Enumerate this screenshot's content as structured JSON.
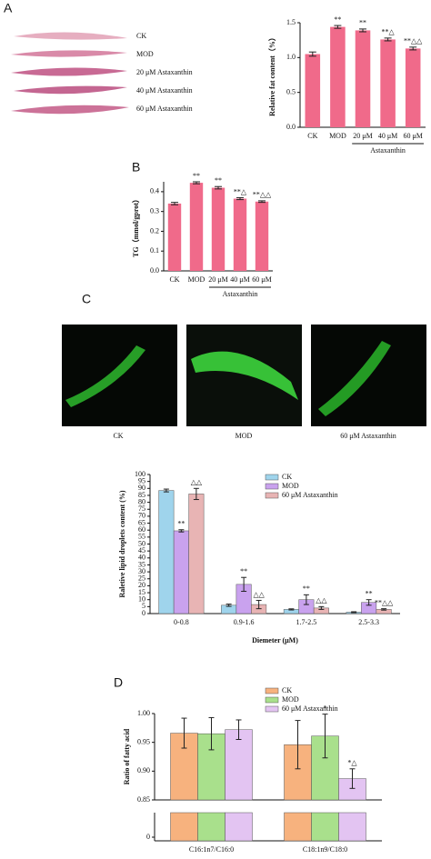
{
  "figure": {
    "panels": [
      "A",
      "B",
      "C",
      "D"
    ],
    "worm_labels": [
      "CK",
      "MOD",
      "20 μM Astaxanthin",
      "40 μM Astaxanthin",
      "60 μM Astaxanthin"
    ],
    "fluor_labels": [
      "CK",
      "MOD",
      "60 μM Astaxanthin"
    ]
  },
  "chart_data": [
    {
      "type": "bar",
      "ylabel": "Relative fat content（%）",
      "categories": [
        "CK",
        "MOD",
        "20 μM",
        "40 μM",
        "60 μM"
      ],
      "group_label": "Astaxanthin",
      "values": [
        1.05,
        1.44,
        1.39,
        1.26,
        1.13
      ],
      "errors": [
        0.03,
        0.02,
        0.02,
        0.02,
        0.02
      ],
      "annotations": [
        null,
        "**",
        "**",
        "**△",
        "**△△"
      ],
      "color": "#f06a8a",
      "ylim": [
        0,
        1.5
      ],
      "yticks": [
        {
          "value": 0,
          "label": "0.0"
        },
        0.5,
        {
          "value": 1,
          "label": "1.0"
        },
        1.5
      ]
    },
    {
      "type": "bar",
      "ylabel": "TG（mmol/gprot）",
      "categories": [
        "CK",
        "MOD",
        "20 μM",
        "40 μM",
        "60 μM"
      ],
      "group_label": "Astaxanthin",
      "values": [
        0.34,
        0.445,
        0.42,
        0.365,
        0.35
      ],
      "errors": [
        0.006,
        0.005,
        0.006,
        0.005,
        0.004
      ],
      "annotations": [
        null,
        "**",
        "**",
        "**△",
        "**△△"
      ],
      "color": "#f06a8a",
      "ylim": [
        0,
        0.45
      ],
      "yticks": [
        {
          "value": 0,
          "label": "0.0"
        },
        0.1,
        0.2,
        0.3,
        0.4
      ]
    },
    {
      "type": "grouped_bar",
      "ylabel": "Raletive lipid droplets content (%)",
      "xlabel": "Diemeter (μM)",
      "categories": [
        "0-0.8",
        "0.9-1.6",
        "1.7-2.5",
        "2.5-3.3"
      ],
      "series": [
        {
          "name": "CK",
          "color": "#9fd4ec",
          "values": [
            88.5,
            6,
            3,
            1
          ],
          "errors": [
            1,
            0.8,
            0.4,
            0.3
          ],
          "annotations": [
            null,
            null,
            null,
            null
          ]
        },
        {
          "name": "MOD",
          "color": "#c9a2ee",
          "values": [
            59.5,
            21,
            10,
            8
          ],
          "errors": [
            0.8,
            5,
            3.5,
            2
          ],
          "annotations": [
            "**",
            "**",
            "**",
            "**"
          ]
        },
        {
          "name": "60 μM Astaxanthin",
          "color": "#e8b4b4",
          "values": [
            86,
            6.5,
            4,
            3
          ],
          "errors": [
            4,
            3,
            1,
            0.5
          ],
          "annotations": [
            "△△",
            "△△",
            "△△",
            "**△△"
          ]
        }
      ],
      "ylim": [
        0,
        100
      ],
      "yticks": [
        0,
        5,
        10,
        15,
        20,
        25,
        30,
        35,
        40,
        45,
        50,
        55,
        60,
        65,
        70,
        75,
        80,
        85,
        90,
        95,
        100
      ]
    },
    {
      "type": "grouped_bar",
      "ylabel": "Ratio of fatty acid",
      "categories": [
        "C16:1n7/C16:0",
        "C18:1n9/C18:0"
      ],
      "series": [
        {
          "name": "CK",
          "color": "#f7b27e",
          "values": [
            0.966,
            0.946
          ],
          "errors": [
            0.026,
            0.042
          ],
          "annotations": [
            null,
            null
          ]
        },
        {
          "name": "MOD",
          "color": "#a9e08c",
          "values": [
            0.965,
            0.961
          ],
          "errors": [
            0.028,
            0.038
          ],
          "annotations": [
            null,
            "*"
          ]
        },
        {
          "name": "60 μM Astaxanthin",
          "color": "#e3c4f2",
          "values": [
            0.972,
            0.887
          ],
          "errors": [
            0.017,
            0.017
          ],
          "annotations": [
            null,
            "*△"
          ]
        }
      ],
      "ylim": [
        0.85,
        1.0
      ],
      "yticks": [
        0.85,
        {
          "value": 0.9,
          "label": "0.90"
        },
        0.95,
        {
          "value": 1.0,
          "label": "1.00"
        }
      ],
      "break_ticks": [
        0
      ]
    }
  ]
}
